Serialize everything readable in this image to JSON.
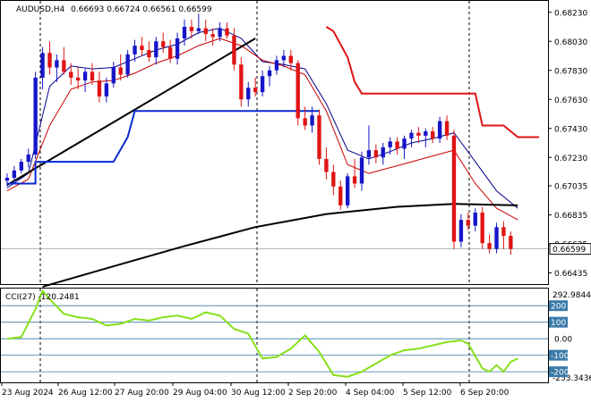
{
  "main_panel": {
    "symbol": "AUDUSD,H4",
    "ohlc": "0.66693 0.66724 0.66561 0.66599",
    "price_ticks": [
      "0.68230",
      "0.68030",
      "0.67830",
      "0.67630",
      "0.67430",
      "0.67230",
      "0.67035",
      "0.66835",
      "0.66635",
      "0.66435"
    ],
    "current_price": "0.66599"
  },
  "cci_panel": {
    "label": "CCI(27) -120.2481",
    "max_label": "292.9844",
    "min_label": "-253.3436",
    "levels": [
      "200",
      "100",
      "0.00",
      "-100",
      "-200"
    ]
  },
  "time_axis": [
    "23 Aug 2024",
    "26 Aug 12:00",
    "27 Aug 20:00",
    "29 Aug 04:00",
    "30 Aug 12:00",
    "2 Sep 20:00",
    "4 Sep 04:00",
    "5 Sep 12:00",
    "6 Sep 20:00"
  ],
  "colors": {
    "bull": "#1515c8",
    "bear": "#e01414",
    "fast_ma": "#00008b",
    "slow_ma": "#c80000",
    "long_ma": "#000000",
    "support_line": "#0a2ad2",
    "stop_line": "#e01414",
    "cci_line": "#86e01a",
    "cci_level": "#3a7aa8",
    "price_tag_bg": "#ffffff"
  },
  "chart_data": {
    "type": "candlestick",
    "timeframe": "H4",
    "y_range": [
      0.6637,
      0.6829
    ],
    "candles": [
      [
        0.6707,
        0.6712,
        0.6703,
        0.6709
      ],
      [
        0.6709,
        0.6717,
        0.6705,
        0.6714
      ],
      [
        0.6714,
        0.6722,
        0.6712,
        0.672
      ],
      [
        0.672,
        0.6729,
        0.6716,
        0.6725
      ],
      [
        0.6725,
        0.6782,
        0.6722,
        0.6778
      ],
      [
        0.6778,
        0.6799,
        0.677,
        0.6795
      ],
      [
        0.6795,
        0.6803,
        0.678,
        0.6785
      ],
      [
        0.6785,
        0.6794,
        0.6775,
        0.679
      ],
      [
        0.679,
        0.6799,
        0.678,
        0.6782
      ],
      [
        0.6782,
        0.6788,
        0.6773,
        0.6778
      ],
      [
        0.6778,
        0.6785,
        0.677,
        0.6776
      ],
      [
        0.6776,
        0.6784,
        0.6768,
        0.6782
      ],
      [
        0.6782,
        0.6788,
        0.6773,
        0.6776
      ],
      [
        0.6776,
        0.6782,
        0.6761,
        0.6765
      ],
      [
        0.6765,
        0.6778,
        0.6761,
        0.6774
      ],
      [
        0.6774,
        0.6789,
        0.6771,
        0.6785
      ],
      [
        0.6785,
        0.6794,
        0.6776,
        0.678
      ],
      [
        0.678,
        0.6797,
        0.6778,
        0.6794
      ],
      [
        0.6794,
        0.6804,
        0.6789,
        0.68
      ],
      [
        0.68,
        0.6806,
        0.6793,
        0.6797
      ],
      [
        0.6797,
        0.6803,
        0.6789,
        0.6792
      ],
      [
        0.6792,
        0.6806,
        0.6787,
        0.6803
      ],
      [
        0.6803,
        0.6809,
        0.6795,
        0.6799
      ],
      [
        0.6799,
        0.6804,
        0.6788,
        0.6791
      ],
      [
        0.6791,
        0.6809,
        0.6787,
        0.6805
      ],
      [
        0.6805,
        0.6818,
        0.68,
        0.6813
      ],
      [
        0.6813,
        0.6818,
        0.6805,
        0.681
      ],
      [
        0.681,
        0.6822,
        0.6808,
        0.6812
      ],
      [
        0.6812,
        0.6818,
        0.6803,
        0.6808
      ],
      [
        0.6808,
        0.6812,
        0.68,
        0.6806
      ],
      [
        0.6806,
        0.6816,
        0.6803,
        0.6812
      ],
      [
        0.6812,
        0.6816,
        0.6805,
        0.6807
      ],
      [
        0.6807,
        0.6812,
        0.6783,
        0.6787
      ],
      [
        0.6787,
        0.6792,
        0.6758,
        0.6763
      ],
      [
        0.6763,
        0.6775,
        0.6758,
        0.6771
      ],
      [
        0.6771,
        0.6778,
        0.6765,
        0.6768
      ],
      [
        0.6768,
        0.6783,
        0.6765,
        0.6779
      ],
      [
        0.6779,
        0.6786,
        0.6772,
        0.6783
      ],
      [
        0.6783,
        0.6793,
        0.678,
        0.679
      ],
      [
        0.679,
        0.6797,
        0.6785,
        0.6793
      ],
      [
        0.6793,
        0.6797,
        0.6783,
        0.6788
      ],
      [
        0.6788,
        0.679,
        0.6745,
        0.675
      ],
      [
        0.675,
        0.6758,
        0.6742,
        0.6745
      ],
      [
        0.6745,
        0.6758,
        0.674,
        0.6752
      ],
      [
        0.6752,
        0.6756,
        0.6718,
        0.6722
      ],
      [
        0.6722,
        0.673,
        0.6708,
        0.6713
      ],
      [
        0.6713,
        0.6718,
        0.6697,
        0.6703
      ],
      [
        0.6703,
        0.6707,
        0.6687,
        0.669
      ],
      [
        0.669,
        0.6712,
        0.6688,
        0.671
      ],
      [
        0.671,
        0.6722,
        0.6702,
        0.6705
      ],
      [
        0.6705,
        0.6727,
        0.67,
        0.6723
      ],
      [
        0.6723,
        0.6745,
        0.6718,
        0.6728
      ],
      [
        0.6728,
        0.6732,
        0.6719,
        0.6723
      ],
      [
        0.6723,
        0.6733,
        0.6718,
        0.673
      ],
      [
        0.673,
        0.6737,
        0.6725,
        0.6734
      ],
      [
        0.6734,
        0.6737,
        0.6725,
        0.6729
      ],
      [
        0.6729,
        0.6738,
        0.6722,
        0.6736
      ],
      [
        0.6736,
        0.6742,
        0.673,
        0.674
      ],
      [
        0.674,
        0.6744,
        0.6733,
        0.6738
      ],
      [
        0.6738,
        0.6743,
        0.673,
        0.6741
      ],
      [
        0.6741,
        0.6744,
        0.6733,
        0.6736
      ],
      [
        0.6736,
        0.6751,
        0.6733,
        0.6748
      ],
      [
        0.6748,
        0.6752,
        0.6735,
        0.6738
      ],
      [
        0.6738,
        0.6742,
        0.666,
        0.6665
      ],
      [
        0.6665,
        0.6684,
        0.6661,
        0.668
      ],
      [
        0.668,
        0.6685,
        0.6673,
        0.6676
      ],
      [
        0.6676,
        0.6688,
        0.6672,
        0.6685
      ],
      [
        0.6685,
        0.6689,
        0.666,
        0.6664
      ],
      [
        0.6664,
        0.667,
        0.6657,
        0.666
      ],
      [
        0.666,
        0.6678,
        0.6657,
        0.6675
      ],
      [
        0.6675,
        0.6679,
        0.666,
        0.6669
      ],
      [
        0.6669,
        0.6672,
        0.6656,
        0.666
      ]
    ],
    "moving_averages": [
      {
        "id": "fast_ma",
        "points": [
          [
            0,
            0.6702
          ],
          [
            3,
            0.6712
          ],
          [
            6,
            0.6772
          ],
          [
            9,
            0.6786
          ],
          [
            12,
            0.6784
          ],
          [
            15,
            0.6785
          ],
          [
            18,
            0.6791
          ],
          [
            21,
            0.6797
          ],
          [
            24,
            0.6801
          ],
          [
            27,
            0.6809
          ],
          [
            30,
            0.6812
          ],
          [
            33,
            0.6805
          ],
          [
            36,
            0.6789
          ],
          [
            39,
            0.6787
          ],
          [
            42,
            0.6784
          ],
          [
            45,
            0.676
          ],
          [
            48,
            0.6728
          ],
          [
            51,
            0.6722
          ],
          [
            54,
            0.6727
          ],
          [
            57,
            0.6733
          ],
          [
            60,
            0.6736
          ],
          [
            63,
            0.674
          ],
          [
            66,
            0.672
          ],
          [
            69,
            0.67
          ],
          [
            72,
            0.6688
          ]
        ]
      },
      {
        "id": "slow_ma",
        "points": [
          [
            0,
            0.67
          ],
          [
            3,
            0.6708
          ],
          [
            6,
            0.6745
          ],
          [
            9,
            0.677
          ],
          [
            12,
            0.6775
          ],
          [
            15,
            0.6776
          ],
          [
            18,
            0.6781
          ],
          [
            21,
            0.6788
          ],
          [
            24,
            0.6793
          ],
          [
            27,
            0.68
          ],
          [
            30,
            0.6805
          ],
          [
            33,
            0.68
          ],
          [
            36,
            0.679
          ],
          [
            39,
            0.6786
          ],
          [
            42,
            0.678
          ],
          [
            45,
            0.6755
          ],
          [
            48,
            0.6718
          ],
          [
            51,
            0.6712
          ],
          [
            54,
            0.6716
          ],
          [
            57,
            0.672
          ],
          [
            60,
            0.6724
          ],
          [
            63,
            0.6728
          ],
          [
            66,
            0.6705
          ],
          [
            69,
            0.6688
          ],
          [
            72,
            0.668
          ]
        ]
      },
      {
        "id": "long_ma",
        "points": [
          [
            5,
            0.6634
          ],
          [
            15,
            0.6648
          ],
          [
            25,
            0.6662
          ],
          [
            35,
            0.6675
          ],
          [
            45,
            0.6684
          ],
          [
            55,
            0.6689
          ],
          [
            63,
            0.6691
          ],
          [
            72,
            0.669
          ]
        ]
      },
      {
        "id": "trend_line",
        "points": [
          [
            0,
            0.6704
          ],
          [
            35,
            0.6805
          ]
        ]
      },
      {
        "id": "support_line",
        "points": [
          [
            0,
            0.6705
          ],
          [
            4,
            0.6705
          ],
          [
            4,
            0.672
          ],
          [
            15,
            0.672
          ],
          [
            17,
            0.6737
          ],
          [
            18,
            0.6755
          ],
          [
            44,
            0.6755
          ]
        ]
      },
      {
        "id": "stop_line",
        "points": [
          [
            45,
            0.6813
          ],
          [
            46,
            0.681
          ],
          [
            48,
            0.6792
          ],
          [
            49,
            0.6775
          ],
          [
            50,
            0.6767
          ],
          [
            66,
            0.6767
          ],
          [
            67,
            0.6745
          ],
          [
            70,
            0.6745
          ],
          [
            72,
            0.6737
          ],
          [
            75,
            0.6737
          ]
        ]
      }
    ],
    "cci": {
      "label": "CCI(27)",
      "last_value": -120.2481,
      "y_range": [
        -253.3436,
        292.9844
      ],
      "levels": [
        200,
        100,
        0,
        -100,
        -200
      ],
      "values": [
        [
          0,
          0
        ],
        [
          2,
          10
        ],
        [
          4,
          180
        ],
        [
          5,
          290
        ],
        [
          6,
          240
        ],
        [
          8,
          150
        ],
        [
          10,
          130
        ],
        [
          12,
          120
        ],
        [
          14,
          80
        ],
        [
          16,
          90
        ],
        [
          18,
          120
        ],
        [
          20,
          110
        ],
        [
          22,
          130
        ],
        [
          24,
          140
        ],
        [
          26,
          120
        ],
        [
          28,
          160
        ],
        [
          30,
          140
        ],
        [
          32,
          60
        ],
        [
          34,
          30
        ],
        [
          36,
          -120
        ],
        [
          38,
          -110
        ],
        [
          40,
          -60
        ],
        [
          42,
          20
        ],
        [
          44,
          -80
        ],
        [
          46,
          -220
        ],
        [
          48,
          -230
        ],
        [
          50,
          -200
        ],
        [
          52,
          -150
        ],
        [
          54,
          -100
        ],
        [
          56,
          -70
        ],
        [
          58,
          -60
        ],
        [
          60,
          -40
        ],
        [
          62,
          -20
        ],
        [
          64,
          -10
        ],
        [
          65,
          -30
        ],
        [
          67,
          -180
        ],
        [
          68,
          -200
        ],
        [
          69,
          -160
        ],
        [
          70,
          -200
        ],
        [
          71,
          -140
        ],
        [
          72,
          -120
        ]
      ]
    }
  }
}
